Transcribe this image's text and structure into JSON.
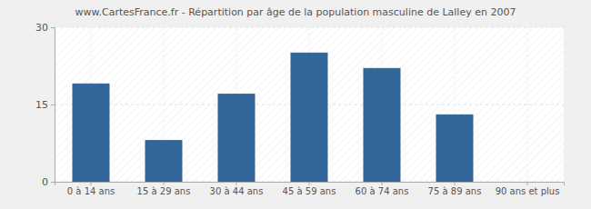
{
  "chart_data": {
    "type": "bar",
    "title": "www.CartesFrance.fr - Répartition par âge de la population masculine de Lalley en 2007",
    "categories": [
      "0 à 14 ans",
      "15 à 29 ans",
      "30 à 44 ans",
      "45 à 59 ans",
      "60 à 74 ans",
      "75 à 89 ans",
      "90 ans et plus"
    ],
    "values": [
      19,
      8,
      17,
      25,
      22,
      13,
      0
    ],
    "color": "#336699",
    "ylim": [
      0,
      30
    ],
    "yticks": [
      0,
      15,
      30
    ],
    "grid": true
  }
}
